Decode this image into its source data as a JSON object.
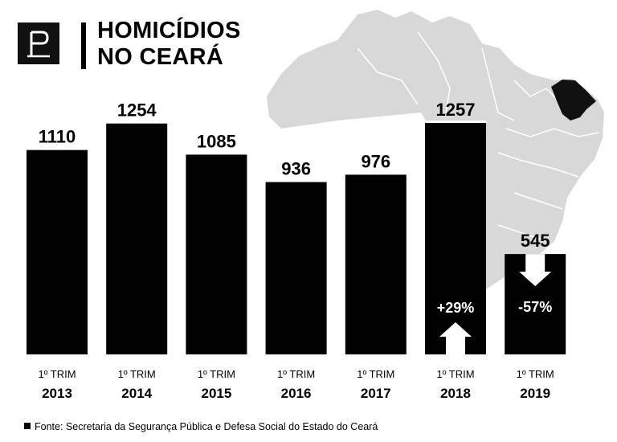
{
  "header": {
    "title_line1": "HOMICÍDIOS",
    "title_line2": "NO CEARÁ"
  },
  "colors": {
    "bar": "#000000",
    "map": "#d8d8d8",
    "highlight_state": "#111111",
    "background": "#ffffff"
  },
  "chart_data": {
    "type": "bar",
    "title": "HOMICÍDIOS NO CEARÁ",
    "categories": [
      "1º TRIM 2013",
      "1º TRIM 2014",
      "1º TRIM 2015",
      "1º TRIM 2016",
      "1º TRIM 2017",
      "1º TRIM 2018",
      "1º TRIM 2019"
    ],
    "period_label": "1º TRIM",
    "years": [
      "2013",
      "2014",
      "2015",
      "2016",
      "2017",
      "2018",
      "2019"
    ],
    "values": [
      1110,
      1254,
      1085,
      936,
      976,
      1257,
      545
    ],
    "value_labels": [
      "1110",
      "1254",
      "1085",
      "936",
      "976",
      "1257",
      "545"
    ],
    "annotations": [
      {
        "category": "1º TRIM 2018",
        "text": "+29%",
        "arrow": "up"
      },
      {
        "category": "1º TRIM 2019",
        "text": "-57%",
        "arrow": "down"
      }
    ],
    "ylim": [
      0,
      1257
    ],
    "grid": false
  },
  "footer": {
    "source": "Fonte: Secretaria da Segurança Pública e Defesa Social do Estado do Ceará"
  }
}
